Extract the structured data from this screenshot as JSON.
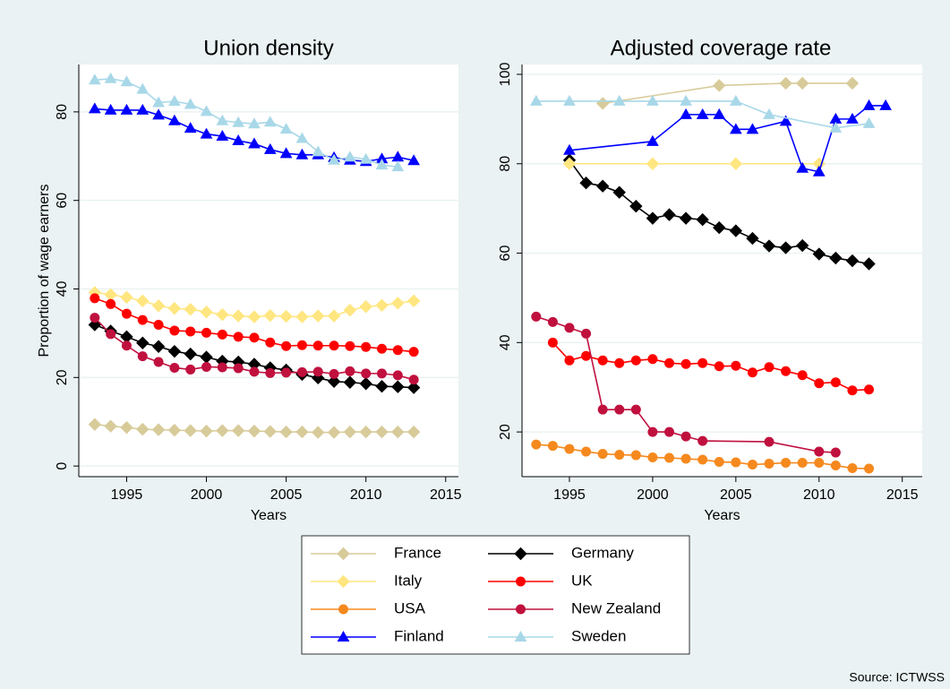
{
  "chart_data": [
    {
      "type": "line",
      "title": "Union density",
      "x_label": "Years",
      "y_label": "Proportion of wage earners",
      "xlim": [
        1992.0,
        2015.8
      ],
      "ylim": [
        -2.4,
        90.7
      ],
      "xticks": [
        1995,
        2000,
        2005,
        2010,
        2015
      ],
      "yticks": [
        0,
        20,
        40,
        60,
        80
      ],
      "grid": true,
      "series": [
        {
          "name": "France",
          "color": "#d8cb9a",
          "marker": "diamond",
          "x": [
            1993,
            1994,
            1995,
            1996,
            1997,
            1998,
            1999,
            2000,
            2001,
            2002,
            2003,
            2004,
            2005,
            2006,
            2007,
            2008,
            2009,
            2010,
            2011,
            2012,
            2013
          ],
          "values": [
            9.4,
            9.0,
            8.7,
            8.3,
            8.2,
            8.1,
            8.0,
            7.9,
            8.0,
            8.0,
            7.9,
            7.8,
            7.7,
            7.7,
            7.6,
            7.6,
            7.7,
            7.7,
            7.7,
            7.7,
            7.7
          ]
        },
        {
          "name": "Germany",
          "color": "#000000",
          "marker": "diamond",
          "x": [
            1993,
            1994,
            1995,
            1996,
            1997,
            1998,
            1999,
            2000,
            2001,
            2002,
            2003,
            2004,
            2005,
            2006,
            2007,
            2008,
            2009,
            2010,
            2011,
            2012,
            2013
          ],
          "values": [
            31.9,
            30.5,
            29.2,
            27.8,
            27.0,
            25.9,
            25.3,
            24.6,
            23.7,
            23.5,
            23.0,
            22.2,
            21.7,
            20.7,
            19.9,
            19.1,
            18.9,
            18.6,
            18.0,
            17.9,
            17.7
          ]
        },
        {
          "name": "Italy",
          "color": "#ffe680",
          "marker": "diamond",
          "x": [
            1993,
            1994,
            1995,
            1996,
            1997,
            1998,
            1999,
            2000,
            2001,
            2002,
            2003,
            2004,
            2005,
            2006,
            2007,
            2008,
            2009,
            2010,
            2011,
            2012,
            2013
          ],
          "values": [
            39.2,
            38.7,
            38.1,
            37.3,
            36.2,
            35.6,
            35.4,
            34.8,
            34.2,
            33.9,
            33.7,
            34.0,
            33.8,
            33.7,
            33.9,
            33.9,
            35.2,
            36.0,
            36.3,
            36.8,
            37.3
          ]
        },
        {
          "name": "UK",
          "color": "#ff0000",
          "marker": "circle",
          "x": [
            1993,
            1994,
            1995,
            1996,
            1997,
            1998,
            1999,
            2000,
            2001,
            2002,
            2003,
            2004,
            2005,
            2006,
            2007,
            2008,
            2009,
            2010,
            2011,
            2012,
            2013
          ],
          "values": [
            37.9,
            36.6,
            34.4,
            33.0,
            31.9,
            30.6,
            30.4,
            30.1,
            29.7,
            29.2,
            29.0,
            27.9,
            27.1,
            27.3,
            27.2,
            27.2,
            27.1,
            26.9,
            26.5,
            26.2,
            25.8
          ]
        },
        {
          "name": "New Zealand",
          "color": "#c0103e",
          "marker": "circle",
          "x": [
            1993,
            1994,
            1995,
            1996,
            1997,
            1998,
            1999,
            2000,
            2001,
            2002,
            2003,
            2004,
            2005,
            2006,
            2007,
            2008,
            2009,
            2010,
            2011,
            2012,
            2013
          ],
          "values": [
            33.5,
            29.8,
            27.2,
            24.8,
            23.5,
            22.2,
            21.8,
            22.4,
            22.3,
            22.1,
            21.3,
            21.0,
            21.1,
            21.2,
            21.3,
            20.8,
            21.4,
            20.9,
            20.9,
            20.5,
            19.5
          ]
        },
        {
          "name": "Finland",
          "color": "#0000ff",
          "marker": "triangle",
          "x": [
            1993,
            1994,
            1995,
            1996,
            1997,
            1998,
            1999,
            2000,
            2001,
            2002,
            2003,
            2004,
            2005,
            2006,
            2007,
            2008,
            2009,
            2010,
            2011,
            2012,
            2013
          ],
          "values": [
            80.7,
            80.4,
            80.4,
            80.4,
            79.3,
            78.0,
            76.3,
            75.0,
            74.5,
            73.5,
            72.8,
            71.5,
            70.6,
            70.3,
            70.3,
            69.7,
            69.1,
            68.8,
            69.4,
            69.8,
            69.0
          ]
        },
        {
          "name": "Sweden",
          "color": "#a8d8e8",
          "marker": "triangle",
          "x": [
            1993,
            1994,
            1995,
            1996,
            1997,
            1998,
            1999,
            2000,
            2001,
            2002,
            2003,
            2004,
            2005,
            2006,
            2007,
            2008,
            2009,
            2010,
            2011,
            2012
          ],
          "values": [
            87.2,
            87.5,
            86.8,
            85.1,
            82.1,
            82.4,
            81.7,
            80.1,
            78.0,
            77.6,
            77.3,
            77.7,
            76.1,
            74.0,
            71.0,
            69.1,
            69.8,
            69.3,
            68.0,
            67.6
          ]
        }
      ]
    },
    {
      "type": "line",
      "title": "Adjusted coverage rate",
      "x_label": "Years",
      "xlim": [
        1992.15,
        2016.2
      ],
      "ylim": [
        10.0,
        102.2
      ],
      "xticks": [
        1995,
        2000,
        2005,
        2010,
        2015
      ],
      "yticks": [
        20,
        40,
        60,
        80,
        100
      ],
      "grid": true,
      "legend": "bottom",
      "series": [
        {
          "name": "France",
          "color": "#d8cb9a",
          "marker": "diamond",
          "x": [
            1997,
            2004,
            2008,
            2009,
            2012
          ],
          "values": [
            93.5,
            97.5,
            98,
            98,
            98
          ]
        },
        {
          "name": "Germany",
          "color": "#000000",
          "marker": "diamond",
          "x": [
            1995,
            1996,
            1997,
            1998,
            1999,
            2000,
            2001,
            2002,
            2003,
            2004,
            2005,
            2006,
            2007,
            2008,
            2009,
            2010,
            2011,
            2012,
            2013
          ],
          "values": [
            80.8,
            75.7,
            75.0,
            73.6,
            70.5,
            67.8,
            68.6,
            67.8,
            67.5,
            65.7,
            65.0,
            63.3,
            61.6,
            61.2,
            61.7,
            59.8,
            58.9,
            58.3,
            57.6
          ]
        },
        {
          "name": "Italy",
          "color": "#ffe680",
          "marker": "diamond",
          "x": [
            1995,
            2000,
            2005,
            2010
          ],
          "values": [
            80,
            80,
            80,
            80
          ]
        },
        {
          "name": "UK",
          "color": "#ff0000",
          "marker": "circle",
          "x": [
            1994,
            1995,
            1996,
            1997,
            1998,
            1999,
            2000,
            2001,
            2002,
            2003,
            2004,
            2005,
            2006,
            2007,
            2008,
            2009,
            2010,
            2011,
            2012,
            2013
          ],
          "values": [
            40,
            36,
            37,
            36,
            35.4,
            36,
            36.3,
            35.4,
            35.2,
            35.4,
            34.7,
            34.8,
            33.3,
            34.5,
            33.6,
            32.7,
            30.9,
            31.1,
            29.3,
            29.5
          ]
        },
        {
          "name": "USA",
          "color": "#f5891e",
          "marker": "circle",
          "x": [
            1993,
            1994,
            1995,
            1996,
            1997,
            1998,
            1999,
            2000,
            2001,
            2002,
            2003,
            2004,
            2005,
            2006,
            2007,
            2008,
            2009,
            2010,
            2011,
            2012,
            2013
          ],
          "values": [
            17.2,
            16.9,
            16.2,
            15.6,
            15.1,
            14.9,
            14.8,
            14.3,
            14.2,
            14.0,
            13.8,
            13.3,
            13.2,
            12.7,
            12.9,
            13.1,
            13.1,
            13.1,
            12.5,
            11.9,
            11.8
          ]
        },
        {
          "name": "New Zealand",
          "color": "#c0103e",
          "marker": "circle",
          "x": [
            1993,
            1994,
            1995,
            1996,
            1997,
            1998,
            1999,
            2000,
            2001,
            2002,
            2003,
            2007,
            2010,
            2011
          ],
          "values": [
            45.8,
            44.6,
            43.3,
            42,
            25,
            25,
            25,
            20,
            20,
            19,
            18,
            17.8,
            15.6,
            15.4
          ]
        },
        {
          "name": "Finland",
          "color": "#0000ff",
          "marker": "triangle",
          "x": [
            1995,
            2000,
            2002,
            2003,
            2004,
            2005,
            2006,
            2008,
            2009,
            2010,
            2011,
            2012,
            2013,
            2014
          ],
          "values": [
            83,
            85,
            91,
            91,
            91,
            87.7,
            87.7,
            89.5,
            79,
            78.2,
            90,
            90,
            93,
            93
          ]
        },
        {
          "name": "Sweden",
          "color": "#a8d8e8",
          "marker": "triangle",
          "x": [
            1993,
            1995,
            1998,
            2000,
            2002,
            2005,
            2007,
            2011,
            2013
          ],
          "values": [
            94,
            94,
            94,
            94,
            94,
            94,
            91,
            88,
            89
          ]
        }
      ]
    }
  ],
  "source": "Source: ICTWSS"
}
